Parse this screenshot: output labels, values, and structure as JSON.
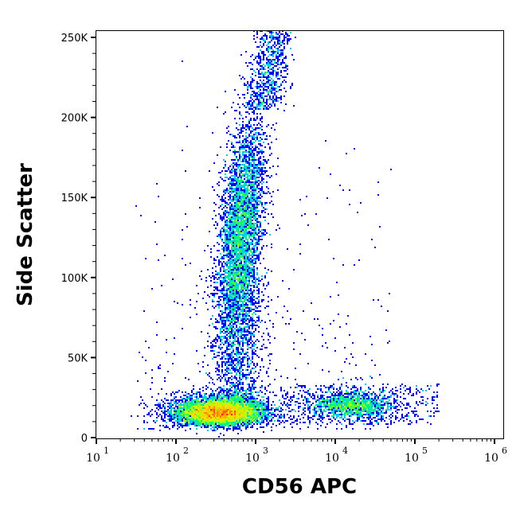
{
  "chart_data": {
    "type": "scatter",
    "subtype": "flow-cytometry pseudocolor density plot",
    "xlabel": "CD56 APC",
    "ylabel": "Side Scatter",
    "x_scale": "log",
    "xlim": [
      8,
      1300000
    ],
    "ylim": [
      -1000,
      256000
    ],
    "x_ticks": [
      {
        "base": "10",
        "exp": "1"
      },
      {
        "base": "10",
        "exp": "2"
      },
      {
        "base": "10",
        "exp": "3"
      },
      {
        "base": "10",
        "exp": "4"
      },
      {
        "base": "10",
        "exp": "5"
      },
      {
        "base": "10",
        "exp": "6"
      }
    ],
    "y_ticks": [
      "0",
      "50K",
      "100K",
      "150K",
      "200K",
      "250K"
    ],
    "y_tick_values": [
      0,
      50000,
      100000,
      150000,
      200000,
      250000
    ],
    "grid": false,
    "legend": "none",
    "color_scale": [
      "#0000ff",
      "#00c8ff",
      "#00ff66",
      "#c8ff00",
      "#ffd000",
      "#ff0000"
    ],
    "populations": [
      {
        "x_center": 350,
        "y_center": 12000,
        "density": "highest"
      },
      {
        "x_center": 800,
        "y_center": 130000,
        "density": "medium"
      },
      {
        "x_center": 16000,
        "y_center": 20000,
        "density": "medium-low"
      }
    ]
  }
}
